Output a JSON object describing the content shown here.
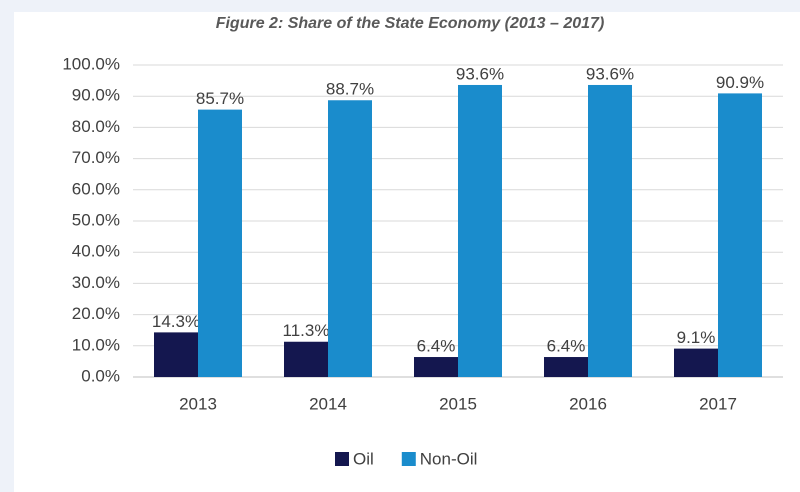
{
  "chart_data": {
    "type": "bar",
    "title": "Figure 2: Share of the State Economy (2013 – 2017)",
    "categories": [
      "2013",
      "2014",
      "2015",
      "2016",
      "2017"
    ],
    "series": [
      {
        "name": "Oil",
        "color": "#14174f",
        "values": [
          14.3,
          11.3,
          6.4,
          6.4,
          9.1
        ],
        "value_labels": [
          "14.3%",
          "11.3%",
          "6.4%",
          "6.4%",
          "9.1%"
        ]
      },
      {
        "name": "Non-Oil",
        "color": "#1a8ccc",
        "values": [
          85.7,
          88.7,
          93.6,
          93.6,
          90.9
        ],
        "value_labels": [
          "85.7%",
          "88.7%",
          "93.6%",
          "93.6%",
          "90.9%"
        ]
      }
    ],
    "ylim": [
      0,
      100
    ],
    "yticks": [
      {
        "value": 0,
        "label": "0.0%"
      },
      {
        "value": 10,
        "label": "10.0%"
      },
      {
        "value": 20,
        "label": "20.0%"
      },
      {
        "value": 30,
        "label": "30.0%"
      },
      {
        "value": 40,
        "label": "40.0%"
      },
      {
        "value": 50,
        "label": "50.0%"
      },
      {
        "value": 60,
        "label": "60.0%"
      },
      {
        "value": 70,
        "label": "70.0%"
      },
      {
        "value": 80,
        "label": "80.0%"
      },
      {
        "value": 90,
        "label": "90.0%"
      },
      {
        "value": 100,
        "label": "100.0%"
      }
    ],
    "grid": true,
    "legend": "bottom"
  }
}
